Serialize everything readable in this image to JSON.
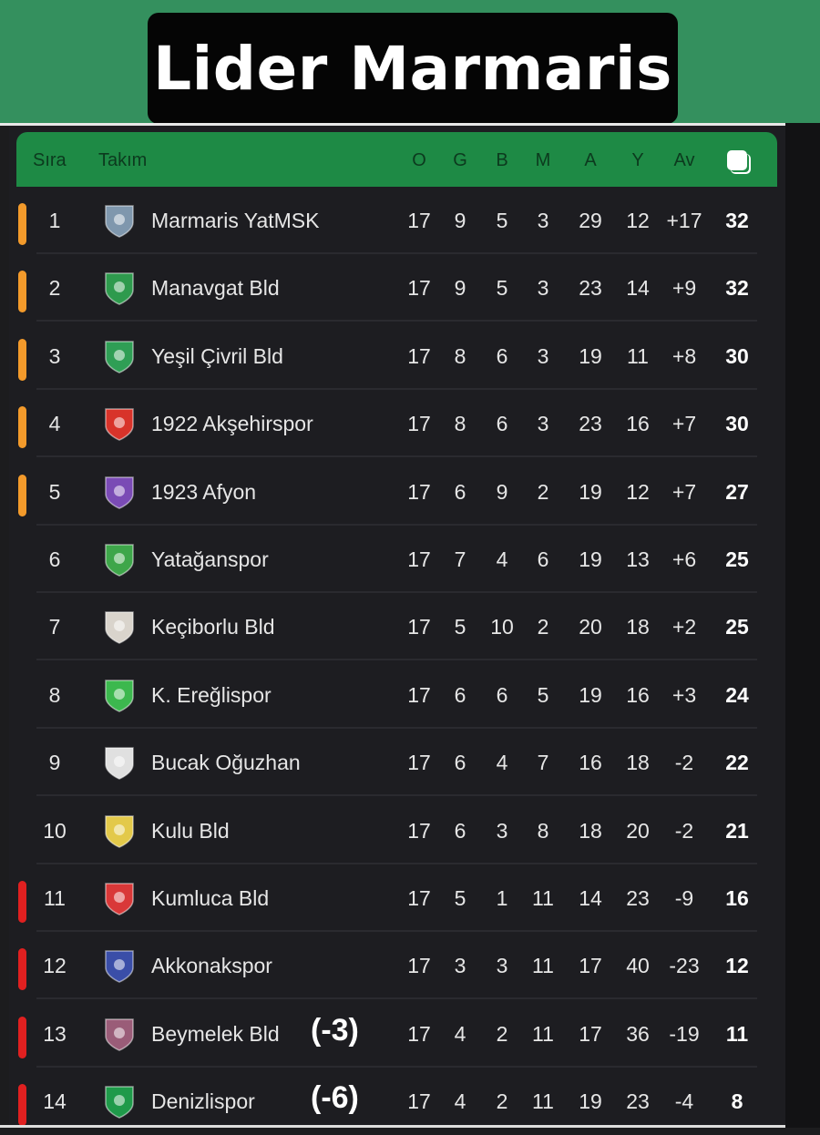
{
  "title": "Lider Marmaris",
  "table": {
    "headers": {
      "pos": "Sıra",
      "team": "Takım",
      "O": "O",
      "G": "G",
      "B": "B",
      "M": "M",
      "A": "A",
      "Y": "Y",
      "Av": "Av",
      "points_icon": "points-icon"
    },
    "colors": {
      "header_bg": "#1e8a45",
      "promotion": "#f39a2b",
      "relegation": "#e02020",
      "background": "#1d1d21"
    },
    "rows": [
      {
        "pos": "1",
        "team": "Marmaris YatMSK",
        "O": "17",
        "G": "9",
        "B": "5",
        "M": "3",
        "A": "29",
        "Y": "12",
        "Av": "+17",
        "P": "32",
        "zone": "promotion",
        "crest": "#7f97ad",
        "deduction": ""
      },
      {
        "pos": "2",
        "team": "Manavgat Bld",
        "O": "17",
        "G": "9",
        "B": "5",
        "M": "3",
        "A": "23",
        "Y": "14",
        "Av": "+9",
        "P": "32",
        "zone": "promotion",
        "crest": "#2e9a4d",
        "deduction": ""
      },
      {
        "pos": "3",
        "team": "Yeşil Çivril Bld",
        "O": "17",
        "G": "8",
        "B": "6",
        "M": "3",
        "A": "19",
        "Y": "11",
        "Av": "+8",
        "P": "30",
        "zone": "promotion",
        "crest": "#2f9e55",
        "deduction": ""
      },
      {
        "pos": "4",
        "team": "1922 Akşehirspor",
        "O": "17",
        "G": "8",
        "B": "6",
        "M": "3",
        "A": "23",
        "Y": "16",
        "Av": "+7",
        "P": "30",
        "zone": "promotion",
        "crest": "#d8332a",
        "deduction": ""
      },
      {
        "pos": "5",
        "team": "1923 Afyon",
        "O": "17",
        "G": "6",
        "B": "9",
        "M": "2",
        "A": "19",
        "Y": "12",
        "Av": "+7",
        "P": "27",
        "zone": "promotion",
        "crest": "#7a4bb5",
        "deduction": ""
      },
      {
        "pos": "6",
        "team": "Yatağanspor",
        "O": "17",
        "G": "7",
        "B": "4",
        "M": "6",
        "A": "19",
        "Y": "13",
        "Av": "+6",
        "P": "25",
        "zone": "",
        "crest": "#3ea64a",
        "deduction": ""
      },
      {
        "pos": "7",
        "team": "Keçiborlu Bld",
        "O": "17",
        "G": "5",
        "B": "10",
        "M": "2",
        "A": "20",
        "Y": "18",
        "Av": "+2",
        "P": "25",
        "zone": "",
        "crest": "#d9d4cc",
        "deduction": ""
      },
      {
        "pos": "8",
        "team": "K. Ereğlispor",
        "O": "17",
        "G": "6",
        "B": "6",
        "M": "5",
        "A": "19",
        "Y": "16",
        "Av": "+3",
        "P": "24",
        "zone": "",
        "crest": "#3cb84e",
        "deduction": ""
      },
      {
        "pos": "9",
        "team": "Bucak Oğuzhan",
        "O": "17",
        "G": "6",
        "B": "4",
        "M": "7",
        "A": "16",
        "Y": "18",
        "Av": "-2",
        "P": "22",
        "zone": "",
        "crest": "#e0e0e0",
        "deduction": ""
      },
      {
        "pos": "10",
        "team": "Kulu Bld",
        "O": "17",
        "G": "6",
        "B": "3",
        "M": "8",
        "A": "18",
        "Y": "20",
        "Av": "-2",
        "P": "21",
        "zone": "",
        "crest": "#e3c94a",
        "deduction": ""
      },
      {
        "pos": "11",
        "team": "Kumluca Bld",
        "O": "17",
        "G": "5",
        "B": "1",
        "M": "11",
        "A": "14",
        "Y": "23",
        "Av": "-9",
        "P": "16",
        "zone": "relegation",
        "crest": "#d93838",
        "deduction": ""
      },
      {
        "pos": "12",
        "team": "Akkonakspor",
        "O": "17",
        "G": "3",
        "B": "3",
        "M": "11",
        "A": "17",
        "Y": "40",
        "Av": "-23",
        "P": "12",
        "zone": "relegation",
        "crest": "#3a4ea8",
        "deduction": ""
      },
      {
        "pos": "13",
        "team": "Beymelek Bld",
        "O": "17",
        "G": "4",
        "B": "2",
        "M": "11",
        "A": "17",
        "Y": "36",
        "Av": "-19",
        "P": "11",
        "zone": "relegation",
        "crest": "#9a5c78",
        "deduction": "(-3)"
      },
      {
        "pos": "14",
        "team": "Denizlispor",
        "O": "17",
        "G": "4",
        "B": "2",
        "M": "11",
        "A": "19",
        "Y": "23",
        "Av": "-4",
        "P": "8",
        "zone": "relegation",
        "crest": "#1f9a4a",
        "deduction": "(-6)"
      }
    ]
  }
}
